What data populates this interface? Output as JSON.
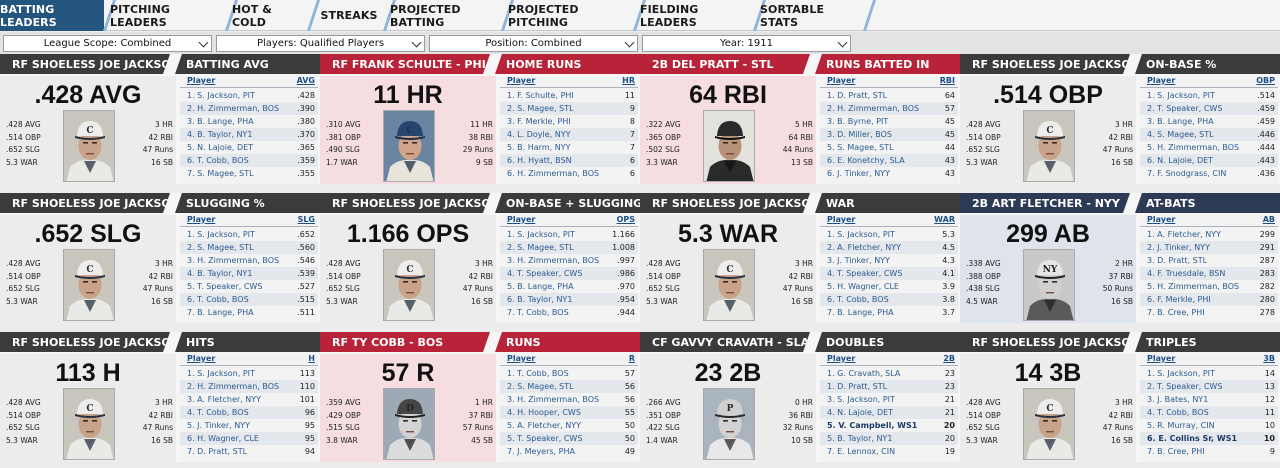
{
  "tabs": [
    {
      "label": "BATTING LEADERS",
      "active": true
    },
    {
      "label": "PITCHING LEADERS",
      "active": false
    },
    {
      "label": "HOT & COLD",
      "active": false
    },
    {
      "label": "STREAKS",
      "active": false
    },
    {
      "label": "PROJECTED BATTING",
      "active": false
    },
    {
      "label": "PROJECTED PITCHING",
      "active": false
    },
    {
      "label": "FIELDING LEADERS",
      "active": false
    },
    {
      "label": "SORTABLE STATS",
      "active": false
    }
  ],
  "filters": {
    "league_scope": "League Scope: Combined",
    "players": "Players: Qualified Players",
    "position": "Position: Combined",
    "year": "Year: 1911"
  },
  "table_header_player": "Player",
  "stat_labels": {
    "avg": "AVG",
    "obp": "OBP",
    "slg": "SLG",
    "war": "WAR",
    "hr": "HR",
    "rbi": "RBI",
    "runs": "Runs",
    "sb": "SB"
  },
  "colors": {
    "active_tab": "#24557f",
    "header_dark": "#3b3b3b",
    "header_red": "#b82339",
    "header_navy": "#2d3a55",
    "link": "#2a5c92"
  },
  "cards": [
    {
      "theme": "dark",
      "photo": "jackson",
      "leader": "RF SHOELESS JOE JACKSON - PIT",
      "category": "BATTING AVG",
      "big_value": ".428 AVG",
      "stats": {
        "avg": ".428",
        "obp": ".514",
        "slg": ".652",
        "war": "5.3",
        "hr": "3",
        "rbi": "42",
        "runs": "47",
        "sb": "16"
      },
      "col": "AVG",
      "rows": [
        [
          "1. S. Jackson, PIT",
          ".428"
        ],
        [
          "2. H. Zimmerman, BOS",
          ".390"
        ],
        [
          "3. B. Lange, PHA",
          ".380"
        ],
        [
          "4. B. Taylor, NY1",
          ".370"
        ],
        [
          "5. N. Lajoie, DET",
          ".365"
        ],
        [
          "6. T. Cobb, BOS",
          ".359"
        ],
        [
          "7. S. Magee, STL",
          ".355"
        ]
      ]
    },
    {
      "theme": "red",
      "photo": "schulte",
      "leader": "RF FRANK SCHULTE - PHI",
      "category": "HOME RUNS",
      "big_value": "11 HR",
      "stats": {
        "avg": ".310",
        "obp": ".381",
        "slg": ".490",
        "war": "1.7",
        "hr": "11",
        "rbi": "38",
        "runs": "29",
        "sb": "9"
      },
      "col": "HR",
      "rows": [
        [
          "1. F. Schulte, PHI",
          "11"
        ],
        [
          "2. S. Magee, STL",
          "9"
        ],
        [
          "3. F. Merkle, PHI",
          "8"
        ],
        [
          "4. L. Doyle, NYY",
          "7"
        ],
        [
          "5. B. Harm, NYY",
          "7"
        ],
        [
          "6. H. Hyatt, BSN",
          "6"
        ],
        [
          "6. H. Zimmerman, BOS",
          "6"
        ]
      ]
    },
    {
      "theme": "red",
      "photo": "pratt",
      "leader": "2B DEL PRATT - STL",
      "category": "RUNS BATTED IN",
      "big_value": "64 RBI",
      "stats": {
        "avg": ".322",
        "obp": ".365",
        "slg": ".502",
        "war": "3.3",
        "hr": "5",
        "rbi": "64",
        "runs": "44",
        "sb": "13"
      },
      "col": "RBI",
      "rows": [
        [
          "1. D. Pratt, STL",
          "64"
        ],
        [
          "2. H. Zimmerman, BOS",
          "57"
        ],
        [
          "3. B. Byrne, PIT",
          "45"
        ],
        [
          "3. D. Miller, BOS",
          "45"
        ],
        [
          "5. S. Magee, STL",
          "44"
        ],
        [
          "6. E. Konetchy, SLA",
          "43"
        ],
        [
          "6. J. Tinker, NYY",
          "43"
        ]
      ]
    },
    {
      "theme": "dark",
      "photo": "jackson",
      "leader": "RF SHOELESS JOE JACKSON - PIT",
      "category": "ON-BASE %",
      "big_value": ".514 OBP",
      "stats": {
        "avg": ".428",
        "obp": ".514",
        "slg": ".652",
        "war": "5.3",
        "hr": "3",
        "rbi": "42",
        "runs": "47",
        "sb": "16"
      },
      "col": "OBP",
      "rows": [
        [
          "1. S. Jackson, PIT",
          ".514"
        ],
        [
          "2. T. Speaker, CWS",
          ".459"
        ],
        [
          "3. B. Lange, PHA",
          ".459"
        ],
        [
          "4. S. Magee, STL",
          ".446"
        ],
        [
          "5. H. Zimmerman, BOS",
          ".444"
        ],
        [
          "6. N. Lajoie, DET",
          ".443"
        ],
        [
          "7. F. Snodgrass, CIN",
          ".436"
        ]
      ]
    },
    {
      "theme": "dark",
      "photo": "jackson",
      "leader": "RF SHOELESS JOE JACKSON - PIT",
      "category": "SLUGGING %",
      "big_value": ".652 SLG",
      "stats": {
        "avg": ".428",
        "obp": ".514",
        "slg": ".652",
        "war": "5.3",
        "hr": "3",
        "rbi": "42",
        "runs": "47",
        "sb": "16"
      },
      "col": "SLG",
      "rows": [
        [
          "1. S. Jackson, PIT",
          ".652"
        ],
        [
          "2. S. Magee, STL",
          ".560"
        ],
        [
          "3. H. Zimmerman, BOS",
          ".546"
        ],
        [
          "4. B. Taylor, NY1",
          ".539"
        ],
        [
          "5. T. Speaker, CWS",
          ".527"
        ],
        [
          "6. T. Cobb, BOS",
          ".515"
        ],
        [
          "7. B. Lange, PHA",
          ".511"
        ]
      ]
    },
    {
      "theme": "dark",
      "photo": "jackson",
      "leader": "RF SHOELESS JOE JACKSON - PIT",
      "category": "ON-BASE + SLUGGING",
      "big_value": "1.166 OPS",
      "stats": {
        "avg": ".428",
        "obp": ".514",
        "slg": ".652",
        "war": "5.3",
        "hr": "3",
        "rbi": "42",
        "runs": "47",
        "sb": "16"
      },
      "col": "OPS",
      "rows": [
        [
          "1. S. Jackson, PIT",
          "1.166"
        ],
        [
          "2. S. Magee, STL",
          "1.008"
        ],
        [
          "3. H. Zimmerman, BOS",
          ".997"
        ],
        [
          "4. T. Speaker, CWS",
          ".986"
        ],
        [
          "5. B. Lange, PHA",
          ".970"
        ],
        [
          "6. B. Taylor, NY1",
          ".954"
        ],
        [
          "7. T. Cobb, BOS",
          ".944"
        ]
      ]
    },
    {
      "theme": "dark",
      "photo": "jackson",
      "leader": "RF SHOELESS JOE JACKSON - PIT",
      "category": "WAR",
      "big_value": "5.3 WAR",
      "stats": {
        "avg": ".428",
        "obp": ".514",
        "slg": ".652",
        "war": "5.3",
        "hr": "3",
        "rbi": "42",
        "runs": "47",
        "sb": "16"
      },
      "col": "WAR",
      "rows": [
        [
          "1. S. Jackson, PIT",
          "5.3"
        ],
        [
          "2. A. Fletcher, NYY",
          "4.5"
        ],
        [
          "3. J. Tinker, NYY",
          "4.3"
        ],
        [
          "4. T. Speaker, CWS",
          "4.1"
        ],
        [
          "5. H. Wagner, CLE",
          "3.9"
        ],
        [
          "6. T. Cobb, BOS",
          "3.8"
        ],
        [
          "7. B. Lange, PHA",
          "3.7"
        ]
      ]
    },
    {
      "theme": "navy",
      "photo": "fletcher",
      "leader": "2B ART FLETCHER - NYY",
      "category": "AT-BATS",
      "big_value": "299 AB",
      "stats": {
        "avg": ".338",
        "obp": ".388",
        "slg": ".438",
        "war": "4.5",
        "hr": "2",
        "rbi": "37",
        "runs": "50",
        "sb": "16"
      },
      "col": "AB",
      "rows": [
        [
          "1. A. Fletcher, NYY",
          "299"
        ],
        [
          "2. J. Tinker, NYY",
          "291"
        ],
        [
          "3. D. Pratt, STL",
          "287"
        ],
        [
          "4. F. Truesdale, BSN",
          "283"
        ],
        [
          "5. H. Zimmerman, BOS",
          "282"
        ],
        [
          "6. F. Merkle, PHI",
          "280"
        ],
        [
          "7. B. Cree, PHI",
          "278"
        ]
      ]
    },
    {
      "theme": "dark",
      "photo": "jackson",
      "leader": "RF SHOELESS JOE JACKSON - PIT",
      "category": "HITS",
      "big_value": "113 H",
      "stats": {
        "avg": ".428",
        "obp": ".514",
        "slg": ".652",
        "war": "5.3",
        "hr": "3",
        "rbi": "42",
        "runs": "47",
        "sb": "16"
      },
      "col": "H",
      "rows": [
        [
          "1. S. Jackson, PIT",
          "113"
        ],
        [
          "2. H. Zimmerman, BOS",
          "110"
        ],
        [
          "3. A. Fletcher, NYY",
          "101"
        ],
        [
          "4. T. Cobb, BOS",
          "96"
        ],
        [
          "5. J. Tinker, NYY",
          "95"
        ],
        [
          "6. H. Wagner, CLE",
          "95"
        ],
        [
          "7. D. Pratt, STL",
          "94"
        ]
      ]
    },
    {
      "theme": "red",
      "photo": "cobb",
      "leader": "RF TY COBB - BOS",
      "category": "RUNS",
      "big_value": "57 R",
      "stats": {
        "avg": ".359",
        "obp": ".429",
        "slg": ".515",
        "war": "3.8",
        "hr": "1",
        "rbi": "37",
        "runs": "57",
        "sb": "45"
      },
      "col": "R",
      "rows": [
        [
          "1. T. Cobb, BOS",
          "57"
        ],
        [
          "2. S. Magee, STL",
          "56"
        ],
        [
          "3. H. Zimmerman, BOS",
          "56"
        ],
        [
          "4. H. Hooper, CWS",
          "55"
        ],
        [
          "5. A. Fletcher, NYY",
          "50"
        ],
        [
          "5. T. Speaker, CWS",
          "50"
        ],
        [
          "7. J. Meyers, PHA",
          "49"
        ]
      ]
    },
    {
      "theme": "dark",
      "photo": "cravath",
      "leader": "CF GAVVY CRAVATH - SLA",
      "category": "DOUBLES",
      "big_value": "23 2B",
      "stats": {
        "avg": ".266",
        "obp": ".351",
        "slg": ".422",
        "war": "1.4",
        "hr": "0",
        "rbi": "36",
        "runs": "32",
        "sb": "10"
      },
      "col": "2B",
      "rows": [
        [
          "1. G. Cravath, SLA",
          "23"
        ],
        [
          "1. D. Pratt, STL",
          "23"
        ],
        [
          "3. S. Jackson, PIT",
          "21"
        ],
        [
          "4. N. Lajoie, DET",
          "21"
        ],
        [
          "5. V. Campbell, WS1",
          "20",
          true
        ],
        [
          "5. B. Taylor, NY1",
          "20"
        ],
        [
          "7. E. Lennox, CIN",
          "19"
        ]
      ]
    },
    {
      "theme": "dark",
      "photo": "jackson",
      "leader": "RF SHOELESS JOE JACKSON - PIT",
      "category": "TRIPLES",
      "big_value": "14 3B",
      "stats": {
        "avg": ".428",
        "obp": ".514",
        "slg": ".652",
        "war": "5.3",
        "hr": "3",
        "rbi": "42",
        "runs": "47",
        "sb": "16"
      },
      "col": "3B",
      "rows": [
        [
          "1. S. Jackson, PIT",
          "14"
        ],
        [
          "2. T. Speaker, CWS",
          "13"
        ],
        [
          "3. J. Bates, NY1",
          "12"
        ],
        [
          "4. T. Cobb, BOS",
          "11"
        ],
        [
          "5. R. Murray, CIN",
          "10"
        ],
        [
          "6. E. Collins Sr, WS1",
          "10",
          true
        ],
        [
          "7. B. Cree, PHI",
          "9"
        ]
      ]
    }
  ]
}
